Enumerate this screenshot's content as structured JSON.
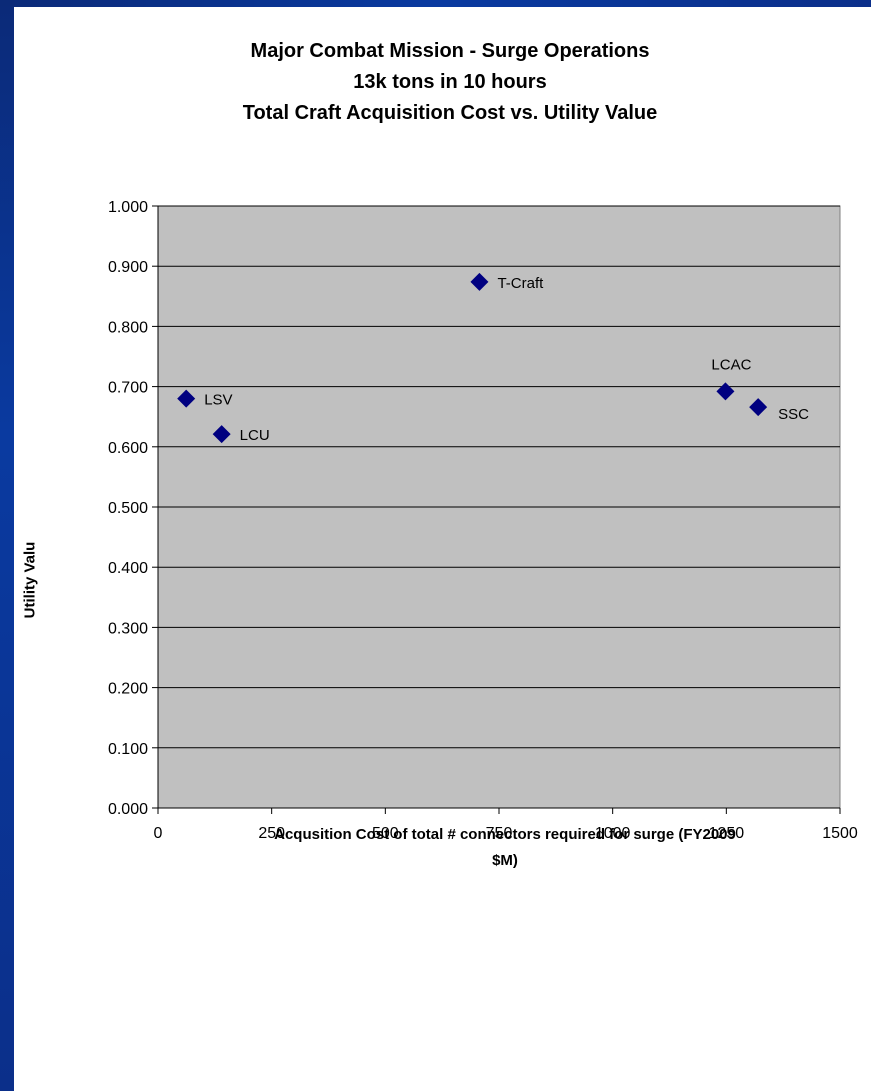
{
  "chart_data": {
    "type": "scatter",
    "title_lines": [
      "Major Combat Mission - Surge Operations",
      "13k tons in 10 hours",
      "Total Craft Acquisition Cost vs. Utility Value"
    ],
    "xlabel_lines": [
      "Acqusition Cost of total # connectors required for surge (FY2009",
      "$M)"
    ],
    "ylabel": "Utility Valu",
    "xlim": [
      0,
      1500
    ],
    "ylim": [
      0,
      1.0
    ],
    "x_ticks": [
      "0",
      "250",
      "500",
      "750",
      "1000",
      "1250",
      "1500"
    ],
    "y_ticks": [
      "0.000",
      "0.100",
      "0.200",
      "0.300",
      "0.400",
      "0.500",
      "0.600",
      "0.700",
      "0.800",
      "0.900",
      "1.000"
    ],
    "grid": "horizontal",
    "plot_background": "#c0c0c0",
    "marker_color": "#000080",
    "marker": "diamond",
    "points": [
      {
        "label": "LSV",
        "x": 62,
        "y": 0.68
      },
      {
        "label": "LCU",
        "x": 140,
        "y": 0.621
      },
      {
        "label": "T-Craft",
        "x": 707,
        "y": 0.874
      },
      {
        "label": "LCAC",
        "x": 1248,
        "y": 0.692
      },
      {
        "label": "SSC",
        "x": 1320,
        "y": 0.666
      }
    ]
  }
}
